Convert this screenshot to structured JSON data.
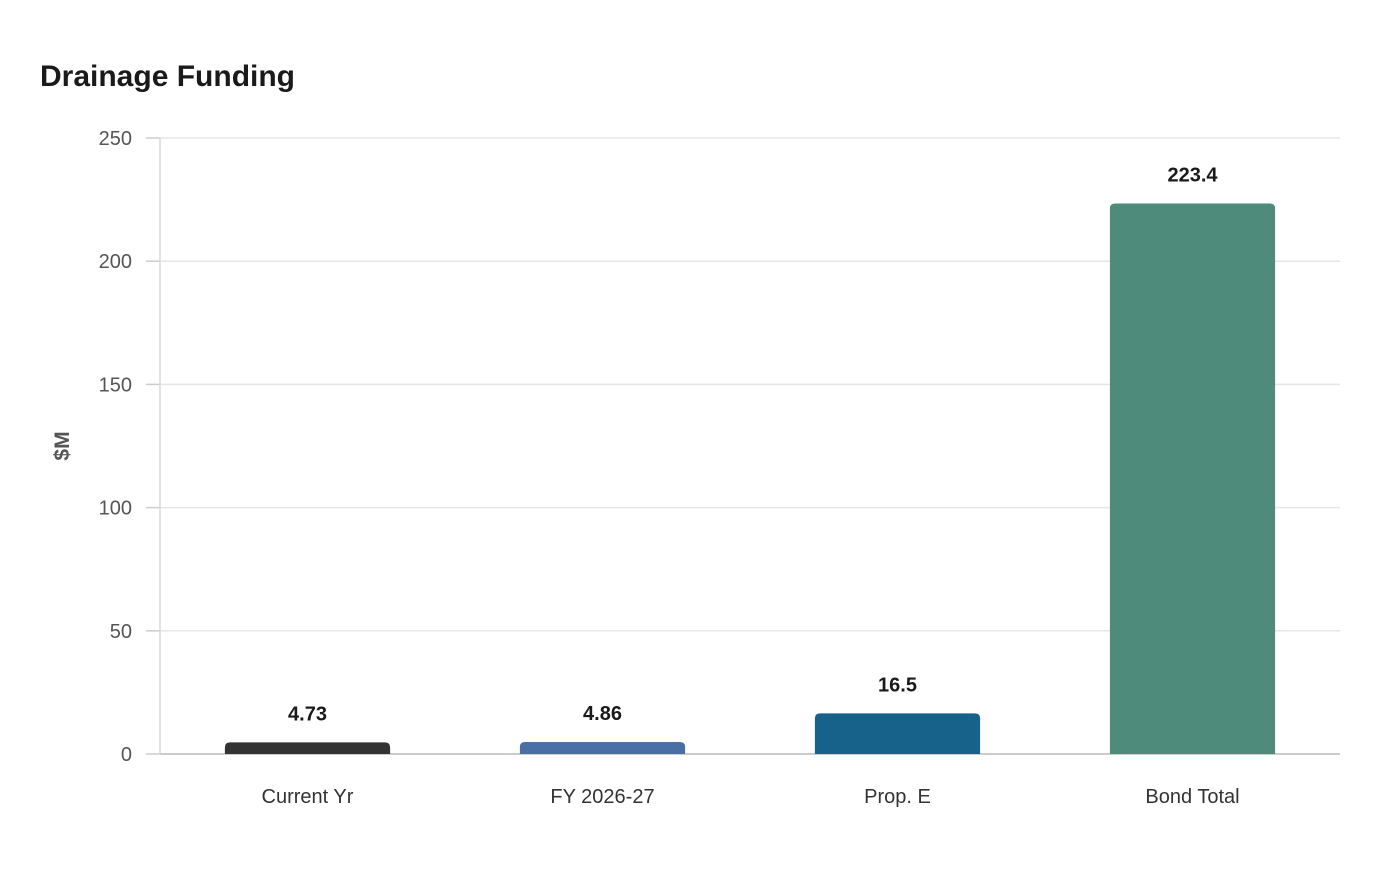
{
  "chart_data": {
    "type": "bar",
    "title": "Drainage Funding",
    "xlabel": "",
    "ylabel": "$M",
    "ylim": [
      0,
      250
    ],
    "yticks": [
      0,
      50,
      100,
      150,
      200,
      250
    ],
    "categories": [
      "Current Yr",
      "FY 2026-27",
      "Prop. E",
      "Bond Total"
    ],
    "values": [
      4.73,
      4.86,
      16.5,
      223.4
    ],
    "value_labels": [
      "4.73",
      "4.86",
      "16.5",
      "223.4"
    ],
    "colors": [
      "#333333",
      "#4a6fa5",
      "#17628a",
      "#4e8b7a"
    ],
    "grid": true,
    "legend": "none"
  }
}
